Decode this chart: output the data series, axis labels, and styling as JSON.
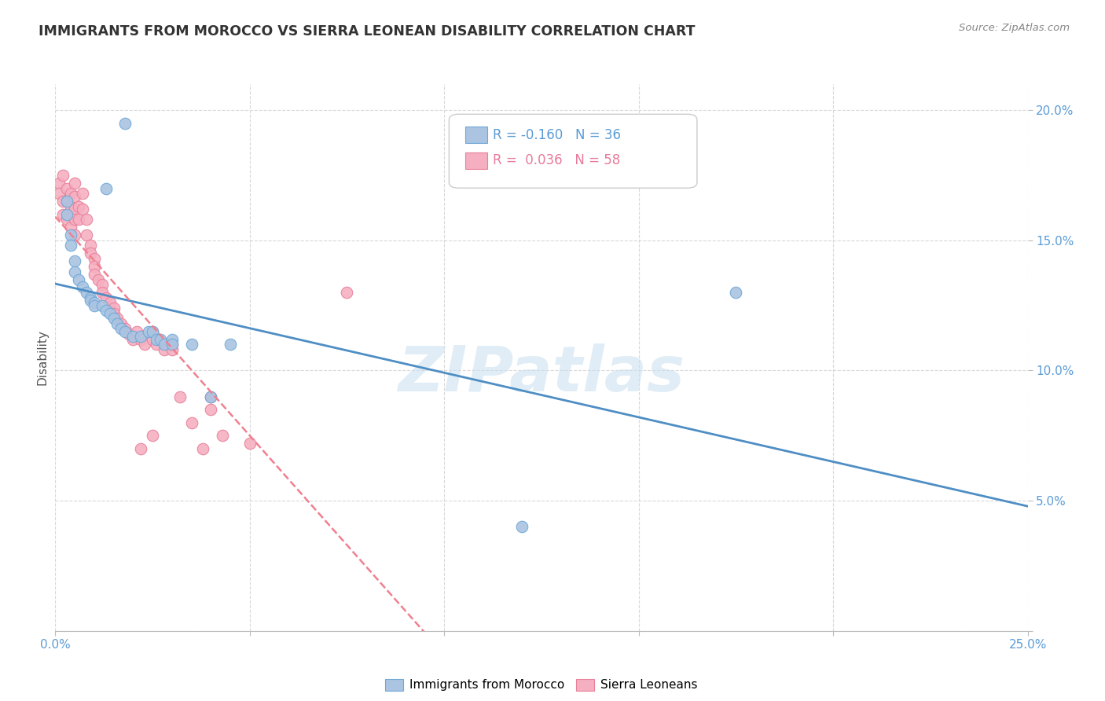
{
  "title": "IMMIGRANTS FROM MOROCCO VS SIERRA LEONEAN DISABILITY CORRELATION CHART",
  "source": "Source: ZipAtlas.com",
  "ylabel": "Disability",
  "xlim": [
    0.0,
    0.25
  ],
  "ylim": [
    0.0,
    0.21
  ],
  "yticks": [
    0.0,
    0.05,
    0.1,
    0.15,
    0.2
  ],
  "ytick_labels": [
    "",
    "5.0%",
    "10.0%",
    "15.0%",
    "20.0%"
  ],
  "xtick_labels": [
    "0.0%",
    "25.0%"
  ],
  "morocco_color": "#aac4e2",
  "sierra_color": "#f5afc0",
  "morocco_edge": "#6fa8d6",
  "sierra_edge": "#e8809a",
  "trendline_morocco_color": "#4e8ec4",
  "trendline_sierra_color": "#f08090",
  "legend_R_morocco": "-0.160",
  "legend_N_morocco": "36",
  "legend_R_sierra": "0.036",
  "legend_N_sierra": "58",
  "watermark": "ZIPatlas",
  "background_color": "#ffffff",
  "grid_color": "#d8d8d8",
  "morocco_x": [
    0.018,
    0.013,
    0.003,
    0.003,
    0.004,
    0.004,
    0.005,
    0.005,
    0.006,
    0.007,
    0.008,
    0.009,
    0.009,
    0.01,
    0.01,
    0.012,
    0.013,
    0.014,
    0.015,
    0.016,
    0.017,
    0.018,
    0.02,
    0.022,
    0.024,
    0.025,
    0.026,
    0.027,
    0.028,
    0.03,
    0.03,
    0.035,
    0.04,
    0.175,
    0.12,
    0.045
  ],
  "morocco_y": [
    0.195,
    0.17,
    0.165,
    0.16,
    0.152,
    0.148,
    0.142,
    0.138,
    0.135,
    0.132,
    0.13,
    0.128,
    0.127,
    0.126,
    0.125,
    0.125,
    0.123,
    0.122,
    0.12,
    0.118,
    0.116,
    0.115,
    0.113,
    0.113,
    0.115,
    0.115,
    0.112,
    0.112,
    0.11,
    0.112,
    0.11,
    0.11,
    0.09,
    0.13,
    0.04,
    0.11
  ],
  "sierra_x": [
    0.001,
    0.001,
    0.002,
    0.002,
    0.002,
    0.003,
    0.003,
    0.003,
    0.004,
    0.004,
    0.004,
    0.005,
    0.005,
    0.005,
    0.005,
    0.005,
    0.006,
    0.006,
    0.007,
    0.007,
    0.008,
    0.008,
    0.009,
    0.009,
    0.01,
    0.01,
    0.01,
    0.011,
    0.012,
    0.012,
    0.013,
    0.014,
    0.015,
    0.015,
    0.016,
    0.017,
    0.018,
    0.019,
    0.02,
    0.021,
    0.022,
    0.023,
    0.025,
    0.025,
    0.026,
    0.028,
    0.03,
    0.03,
    0.032,
    0.035,
    0.038,
    0.04,
    0.04,
    0.043,
    0.05,
    0.025,
    0.022,
    0.075
  ],
  "sierra_y": [
    0.172,
    0.168,
    0.175,
    0.165,
    0.16,
    0.17,
    0.165,
    0.158,
    0.168,
    0.163,
    0.155,
    0.172,
    0.167,
    0.162,
    0.158,
    0.152,
    0.163,
    0.158,
    0.168,
    0.162,
    0.158,
    0.152,
    0.148,
    0.145,
    0.143,
    0.14,
    0.137,
    0.135,
    0.133,
    0.13,
    0.128,
    0.126,
    0.124,
    0.122,
    0.12,
    0.118,
    0.116,
    0.114,
    0.112,
    0.115,
    0.112,
    0.11,
    0.115,
    0.112,
    0.11,
    0.108,
    0.11,
    0.108,
    0.09,
    0.08,
    0.07,
    0.09,
    0.085,
    0.075,
    0.072,
    0.075,
    0.07,
    0.13
  ]
}
